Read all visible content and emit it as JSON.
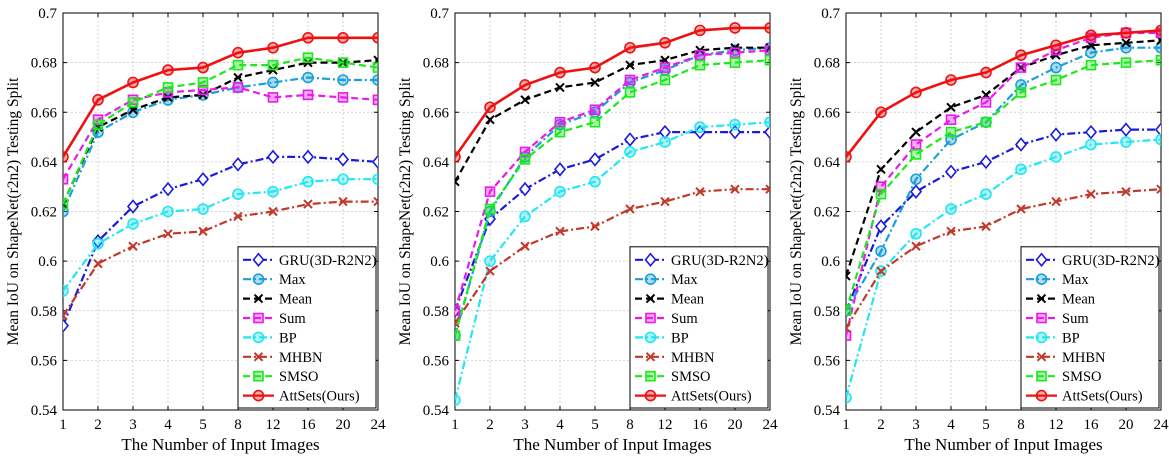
{
  "ylabel": "Mean IoU on ShapeNet(r2n2) Testing Split",
  "xlabel": "The Number of Input Images",
  "x_ticks": [
    "1",
    "2",
    "3",
    "4",
    "5",
    "8",
    "12",
    "16",
    "20",
    "24"
  ],
  "y_ticks": [
    "0.54",
    "0.56",
    "0.58",
    "0.6",
    "0.62",
    "0.64",
    "0.66",
    "0.68",
    "0.7"
  ],
  "series_style": [
    {
      "name": "GRU(3D-R2N2)",
      "color": "#1a1adb",
      "marker": "diamond",
      "dash": "dashdot"
    },
    {
      "name": "Max",
      "color": "#1a9fd8",
      "marker": "circle",
      "dash": "dashdot"
    },
    {
      "name": "Mean",
      "color": "#000000",
      "marker": "x",
      "dash": "dash"
    },
    {
      "name": "Sum",
      "color": "#e81ce8",
      "marker": "square",
      "dash": "dash"
    },
    {
      "name": "BP",
      "color": "#22e6f0",
      "marker": "circle",
      "dash": "dashdot"
    },
    {
      "name": "MHBN",
      "color": "#c0392b",
      "marker": "x",
      "dash": "dashdot"
    },
    {
      "name": "SMSO",
      "color": "#1ee81e",
      "marker": "square",
      "dash": "dash"
    },
    {
      "name": "AttSets(Ours)",
      "color": "#ee1111",
      "marker": "circle",
      "dash": "solid"
    }
  ],
  "chart_data": [
    {
      "type": "line",
      "x": [
        1,
        2,
        3,
        4,
        5,
        8,
        12,
        16,
        20,
        24
      ],
      "xlabel": "The Number of Input Images",
      "ylabel": "Mean IoU on ShapeNet(r2n2) Testing Split",
      "ylim": [
        0.54,
        0.7
      ],
      "grid": true,
      "legend": "bottom-right",
      "series": [
        {
          "name": "GRU(3D-R2N2)",
          "values": [
            0.574,
            0.608,
            0.622,
            0.629,
            0.633,
            0.639,
            0.642,
            0.642,
            0.641,
            0.64
          ]
        },
        {
          "name": "Max",
          "values": [
            0.62,
            0.652,
            0.66,
            0.665,
            0.667,
            0.67,
            0.672,
            0.674,
            0.673,
            0.673
          ]
        },
        {
          "name": "Mean",
          "values": [
            0.623,
            0.654,
            0.661,
            0.666,
            0.667,
            0.674,
            0.677,
            0.68,
            0.68,
            0.681
          ]
        },
        {
          "name": "Sum",
          "values": [
            0.633,
            0.657,
            0.665,
            0.668,
            0.669,
            0.67,
            0.666,
            0.667,
            0.666,
            0.665
          ]
        },
        {
          "name": "BP",
          "values": [
            0.588,
            0.607,
            0.615,
            0.62,
            0.621,
            0.627,
            0.628,
            0.632,
            0.633,
            0.633
          ]
        },
        {
          "name": "MHBN",
          "values": [
            0.578,
            0.599,
            0.606,
            0.611,
            0.612,
            0.618,
            0.62,
            0.623,
            0.624,
            0.624
          ]
        },
        {
          "name": "SMSO",
          "values": [
            0.623,
            0.655,
            0.664,
            0.67,
            0.672,
            0.679,
            0.679,
            0.682,
            0.68,
            0.678
          ]
        },
        {
          "name": "AttSets(Ours)",
          "values": [
            0.642,
            0.665,
            0.672,
            0.677,
            0.678,
            0.684,
            0.686,
            0.69,
            0.69,
            0.69
          ]
        }
      ]
    },
    {
      "type": "line",
      "x": [
        1,
        2,
        3,
        4,
        5,
        8,
        12,
        16,
        20,
        24
      ],
      "xlabel": "The Number of Input Images",
      "ylabel": "Mean IoU on ShapeNet(r2n2) Testing Split",
      "ylim": [
        0.54,
        0.7
      ],
      "grid": true,
      "legend": "bottom-right",
      "series": [
        {
          "name": "GRU(3D-R2N2)",
          "values": [
            0.58,
            0.617,
            0.629,
            0.637,
            0.641,
            0.649,
            0.652,
            0.652,
            0.652,
            0.652
          ]
        },
        {
          "name": "Max",
          "values": [
            0.57,
            0.62,
            0.642,
            0.655,
            0.66,
            0.672,
            0.677,
            0.683,
            0.685,
            0.686
          ]
        },
        {
          "name": "Mean",
          "values": [
            0.632,
            0.657,
            0.665,
            0.67,
            0.672,
            0.679,
            0.681,
            0.685,
            0.686,
            0.686
          ]
        },
        {
          "name": "Sum",
          "values": [
            0.58,
            0.628,
            0.644,
            0.656,
            0.661,
            0.673,
            0.678,
            0.683,
            0.684,
            0.685
          ]
        },
        {
          "name": "BP",
          "values": [
            0.544,
            0.6,
            0.618,
            0.628,
            0.632,
            0.644,
            0.648,
            0.654,
            0.655,
            0.656
          ]
        },
        {
          "name": "MHBN",
          "values": [
            0.575,
            0.596,
            0.606,
            0.612,
            0.614,
            0.621,
            0.624,
            0.628,
            0.629,
            0.629
          ]
        },
        {
          "name": "SMSO",
          "values": [
            0.57,
            0.621,
            0.641,
            0.652,
            0.656,
            0.668,
            0.673,
            0.679,
            0.68,
            0.681
          ]
        },
        {
          "name": "AttSets(Ours)",
          "values": [
            0.642,
            0.662,
            0.671,
            0.676,
            0.678,
            0.686,
            0.688,
            0.693,
            0.694,
            0.694
          ]
        }
      ]
    },
    {
      "type": "line",
      "x": [
        1,
        2,
        3,
        4,
        5,
        8,
        12,
        16,
        20,
        24
      ],
      "xlabel": "The Number of Input Images",
      "ylabel": "Mean IoU on ShapeNet(r2n2) Testing Split",
      "ylim": [
        0.54,
        0.7
      ],
      "grid": true,
      "legend": "bottom-right",
      "series": [
        {
          "name": "GRU(3D-R2N2)",
          "values": [
            0.58,
            0.614,
            0.628,
            0.636,
            0.64,
            0.647,
            0.651,
            0.652,
            0.653,
            0.653
          ]
        },
        {
          "name": "Max",
          "values": [
            0.58,
            0.604,
            0.633,
            0.649,
            0.656,
            0.671,
            0.678,
            0.684,
            0.686,
            0.686
          ]
        },
        {
          "name": "Mean",
          "values": [
            0.594,
            0.637,
            0.652,
            0.662,
            0.667,
            0.678,
            0.683,
            0.687,
            0.688,
            0.689
          ]
        },
        {
          "name": "Sum",
          "values": [
            0.57,
            0.63,
            0.647,
            0.657,
            0.664,
            0.678,
            0.685,
            0.69,
            0.692,
            0.692
          ]
        },
        {
          "name": "BP",
          "values": [
            0.545,
            0.596,
            0.611,
            0.621,
            0.627,
            0.637,
            0.642,
            0.647,
            0.648,
            0.649
          ]
        },
        {
          "name": "MHBN",
          "values": [
            0.573,
            0.596,
            0.606,
            0.612,
            0.614,
            0.621,
            0.624,
            0.627,
            0.628,
            0.629
          ]
        },
        {
          "name": "SMSO",
          "values": [
            0.58,
            0.627,
            0.643,
            0.652,
            0.656,
            0.668,
            0.673,
            0.679,
            0.68,
            0.681
          ]
        },
        {
          "name": "AttSets(Ours)",
          "values": [
            0.642,
            0.66,
            0.668,
            0.673,
            0.676,
            0.683,
            0.687,
            0.691,
            0.692,
            0.693
          ]
        }
      ]
    }
  ]
}
